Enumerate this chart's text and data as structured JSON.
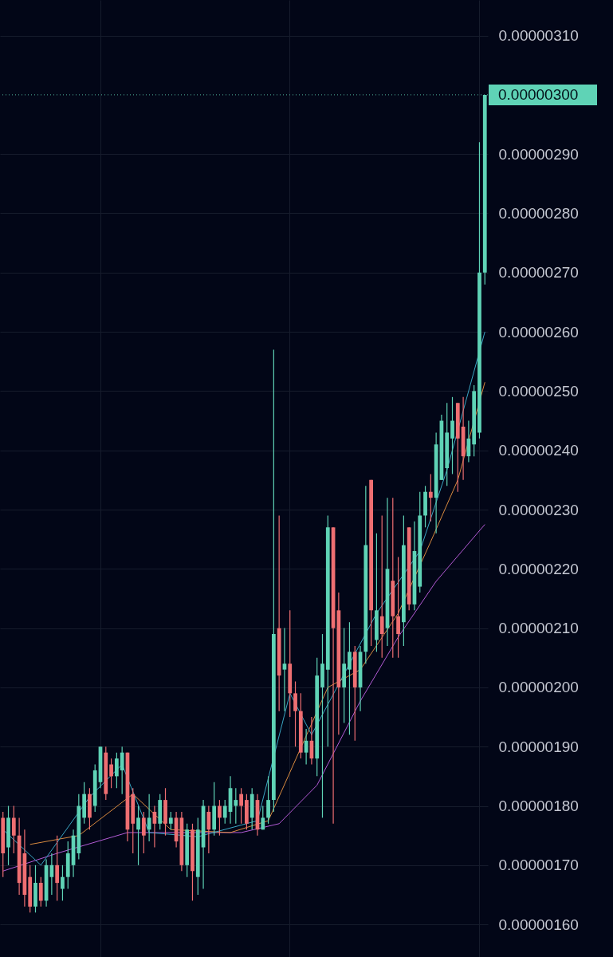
{
  "chart_data": {
    "type": "candlestick",
    "categories": [
      null,
      null,
      null,
      null,
      null,
      null,
      null,
      null,
      null,
      null,
      null,
      null,
      null,
      null,
      null,
      null,
      null,
      null,
      null,
      null,
      null,
      null,
      null,
      null,
      null,
      null,
      null,
      null,
      null,
      null,
      null,
      null,
      null,
      null,
      null,
      null,
      null,
      null,
      null,
      null,
      null,
      null,
      null,
      null,
      null,
      null,
      null,
      null,
      null,
      null,
      null,
      null,
      null,
      null,
      null,
      null,
      null,
      null,
      null,
      null,
      null,
      null,
      null,
      null,
      null,
      null,
      null,
      null,
      null,
      null,
      null,
      null,
      null,
      null,
      null,
      null,
      null,
      null,
      null,
      null,
      null,
      null,
      null,
      null,
      null,
      null,
      null,
      null,
      null,
      null
    ],
    "ohlc": [
      [
        1.78e-06,
        1.79e-06,
        1.68e-06,
        1.72e-06
      ],
      [
        1.73e-06,
        1.8e-06,
        1.7e-06,
        1.78e-06
      ],
      [
        1.78e-06,
        1.8e-06,
        1.72e-06,
        1.75e-06
      ],
      [
        1.75e-06,
        1.78e-06,
        1.65e-06,
        1.67e-06
      ],
      [
        1.72e-06,
        1.76e-06,
        1.63e-06,
        1.65e-06
      ],
      [
        1.68e-06,
        1.7e-06,
        1.62e-06,
        1.63e-06
      ],
      [
        1.63e-06,
        1.7e-06,
        1.62e-06,
        1.67e-06
      ],
      [
        1.67e-06,
        1.68e-06,
        1.63e-06,
        1.64e-06
      ],
      [
        1.64e-06,
        1.71e-06,
        1.63e-06,
        1.7e-06
      ],
      [
        1.68e-06,
        1.72e-06,
        1.65e-06,
        1.7e-06
      ],
      [
        1.7e-06,
        1.75e-06,
        1.64e-06,
        1.67e-06
      ],
      [
        1.66e-06,
        1.7e-06,
        1.64e-06,
        1.68e-06
      ],
      [
        1.68e-06,
        1.74e-06,
        1.66e-06,
        1.72e-06
      ],
      [
        1.7e-06,
        1.76e-06,
        1.68e-06,
        1.75e-06
      ],
      [
        1.72e-06,
        1.82e-06,
        1.71e-06,
        1.8e-06
      ],
      [
        1.78e-06,
        1.84e-06,
        1.77e-06,
        1.82e-06
      ],
      [
        1.82e-06,
        1.83e-06,
        1.76e-06,
        1.78e-06
      ],
      [
        1.8e-06,
        1.87e-06,
        1.79e-06,
        1.86e-06
      ],
      [
        1.84e-06,
        1.9e-06,
        1.83e-06,
        1.9e-06
      ],
      [
        1.89e-06,
        1.9e-06,
        1.81e-06,
        1.82e-06
      ],
      [
        1.87e-06,
        1.88e-06,
        1.83e-06,
        1.85e-06
      ],
      [
        1.85e-06,
        1.89e-06,
        1.83e-06,
        1.88e-06
      ],
      [
        1.86e-06,
        1.9e-06,
        1.82e-06,
        1.89e-06
      ],
      [
        1.89e-06,
        1.89e-06,
        1.74e-06,
        1.76e-06
      ],
      [
        1.82e-06,
        1.83e-06,
        1.72e-06,
        1.77e-06
      ],
      [
        1.76e-06,
        1.8e-06,
        1.7e-06,
        1.78e-06
      ],
      [
        1.78e-06,
        1.79e-06,
        1.72e-06,
        1.75e-06
      ],
      [
        1.76e-06,
        1.82e-06,
        1.74e-06,
        1.78e-06
      ],
      [
        1.79e-06,
        1.8e-06,
        1.73e-06,
        1.77e-06
      ],
      [
        1.77e-06,
        1.82e-06,
        1.76e-06,
        1.81e-06
      ],
      [
        1.81e-06,
        1.83e-06,
        1.75e-06,
        1.77e-06
      ],
      [
        1.77e-06,
        1.79e-06,
        1.76e-06,
        1.78e-06
      ],
      [
        1.78e-06,
        1.79e-06,
        1.73e-06,
        1.74e-06
      ],
      [
        1.78e-06,
        1.79e-06,
        1.69e-06,
        1.7e-06
      ],
      [
        1.7e-06,
        1.77e-06,
        1.68e-06,
        1.76e-06
      ],
      [
        1.76e-06,
        1.77e-06,
        1.64e-06,
        1.69e-06
      ],
      [
        1.68e-06,
        1.78e-06,
        1.65e-06,
        1.76e-06
      ],
      [
        1.73e-06,
        1.81e-06,
        1.66e-06,
        1.8e-06
      ],
      [
        1.79e-06,
        1.8e-06,
        1.72e-06,
        1.76e-06
      ],
      [
        1.76e-06,
        1.84e-06,
        1.75e-06,
        1.8e-06
      ],
      [
        1.8e-06,
        1.81e-06,
        1.75e-06,
        1.78e-06
      ],
      [
        1.78e-06,
        1.81e-06,
        1.77e-06,
        1.8e-06
      ],
      [
        1.79e-06,
        1.85e-06,
        1.77e-06,
        1.83e-06
      ],
      [
        1.8e-06,
        1.83e-06,
        1.77e-06,
        1.81e-06
      ],
      [
        1.82e-06,
        1.83e-06,
        1.77e-06,
        1.8e-06
      ],
      [
        1.81e-06,
        1.82e-06,
        1.76e-06,
        1.77e-06
      ],
      [
        1.78e-06,
        1.83e-06,
        1.76e-06,
        1.82e-06
      ],
      [
        1.81e-06,
        1.82e-06,
        1.75e-06,
        1.76e-06
      ],
      [
        1.76e-06,
        1.8e-06,
        1.76e-06,
        1.78e-06
      ],
      [
        1.78e-06,
        1.85e-06,
        1.77e-06,
        1.81e-06
      ],
      [
        1.81e-06,
        2.57e-06,
        1.79e-06,
        2.09e-06
      ],
      [
        2.1e-06,
        2.29e-06,
        1.96e-06,
        2.02e-06
      ],
      [
        2.03e-06,
        2.1e-06,
        1.96e-06,
        2.04e-06
      ],
      [
        2.04e-06,
        2.13e-06,
        1.95e-06,
        1.99e-06
      ],
      [
        1.99e-06,
        2.01e-06,
        1.9e-06,
        1.96e-06
      ],
      [
        1.96e-06,
        1.99e-06,
        1.88e-06,
        1.89e-06
      ],
      [
        1.89e-06,
        1.93e-06,
        1.87e-06,
        1.91e-06
      ],
      [
        1.91e-06,
        1.95e-06,
        1.87e-06,
        1.88e-06
      ],
      [
        1.88e-06,
        2.05e-06,
        1.85e-06,
        2.02e-06
      ],
      [
        2e-06,
        2.09e-06,
        1.78e-06,
        2.04e-06
      ],
      [
        2.03e-06,
        2.29e-06,
        1.9e-06,
        2.27e-06
      ],
      [
        2.27e-06,
        2.27e-06,
        1.77e-06,
        2.1e-06
      ],
      [
        2.13e-06,
        2.16e-06,
        1.92e-06,
        2e-06
      ],
      [
        2e-06,
        2.1e-06,
        1.94e-06,
        2.04e-06
      ],
      [
        2.03e-06,
        2.11e-06,
        1.92e-06,
        2.06e-06
      ],
      [
        2.06e-06,
        2.07e-06,
        1.91e-06,
        2e-06
      ],
      [
        2e-06,
        2.07e-06,
        1.96e-06,
        2.06e-06
      ],
      [
        2.06e-06,
        2.34e-06,
        2.04e-06,
        2.24e-06
      ],
      [
        2.35e-06,
        2.35e-06,
        2.07e-06,
        2.13e-06
      ],
      [
        2.08e-06,
        2.26e-06,
        2.06e-06,
        2.13e-06
      ],
      [
        2.12e-06,
        2.29e-06,
        2.05e-06,
        2.09e-06
      ],
      [
        2.1e-06,
        2.32e-06,
        2.07e-06,
        2.2e-06
      ],
      [
        2.18e-06,
        2.32e-06,
        2.05e-06,
        2.12e-06
      ],
      [
        2.12e-06,
        2.22e-06,
        2.05e-06,
        2.09e-06
      ],
      [
        2.11e-06,
        2.29e-06,
        2.07e-06,
        2.24e-06
      ],
      [
        2.27e-06,
        2.27e-06,
        2.13e-06,
        2.14e-06
      ],
      [
        2.14e-06,
        2.28e-06,
        2.13e-06,
        2.23e-06
      ],
      [
        2.17e-06,
        2.33e-06,
        2.16e-06,
        2.29e-06
      ],
      [
        2.29e-06,
        2.34e-06,
        2.27e-06,
        2.33e-06
      ],
      [
        2.33e-06,
        2.36e-06,
        2.28e-06,
        2.32e-06
      ],
      [
        2.32e-06,
        2.43e-06,
        2.26e-06,
        2.41e-06
      ],
      [
        2.35e-06,
        2.46e-06,
        2.35e-06,
        2.45e-06
      ],
      [
        2.37e-06,
        2.48e-06,
        2.34e-06,
        2.43e-06
      ],
      [
        2.42e-06,
        2.49e-06,
        2.36e-06,
        2.45e-06
      ],
      [
        2.48e-06,
        2.48e-06,
        2.33e-06,
        2.42e-06
      ],
      [
        2.44e-06,
        2.49e-06,
        2.35e-06,
        2.39e-06
      ],
      [
        2.39e-06,
        2.45e-06,
        2.38e-06,
        2.42e-06
      ],
      [
        2.41e-06,
        2.51e-06,
        2.39e-06,
        2.5e-06
      ],
      [
        2.43e-06,
        2.92e-06,
        2.42e-06,
        2.7e-06
      ],
      [
        2.7e-06,
        3e-06,
        2.68e-06,
        3e-06
      ]
    ],
    "series": [
      {
        "type": "line",
        "color": "#b25bd6",
        "values": [
          1.69e-06,
          null,
          null,
          null,
          null,
          null,
          null,
          null,
          null,
          null,
          1.72e-06,
          null,
          null,
          null,
          null,
          null,
          null,
          null,
          null,
          null,
          null,
          null,
          null,
          1.755e-06,
          null,
          null,
          null,
          null,
          null,
          null,
          null,
          null,
          null,
          null,
          null,
          null,
          null,
          null,
          null,
          null,
          null,
          null,
          null,
          null,
          1.755e-06,
          null,
          null,
          null,
          null,
          null,
          null,
          1.77e-06,
          null,
          null,
          null,
          null,
          null,
          null,
          1.835e-06,
          null,
          null,
          null,
          null,
          null,
          null,
          null,
          1.977e-06,
          null,
          null,
          null,
          null,
          null,
          null,
          2.085e-06,
          null,
          null,
          null,
          null,
          null,
          null,
          2.179e-06,
          null,
          null,
          null,
          null,
          null,
          null,
          null,
          null,
          2.275e-06
        ]
      },
      {
        "type": "line",
        "color": "#d98b3f",
        "values": [
          null,
          null,
          null,
          null,
          null,
          1.735e-06,
          null,
          null,
          null,
          null,
          null,
          null,
          null,
          null,
          1.75e-06,
          null,
          null,
          null,
          null,
          null,
          null,
          null,
          null,
          null,
          1.82e-06,
          null,
          null,
          null,
          null,
          null,
          null,
          1.76e-06,
          null,
          null,
          null,
          null,
          null,
          null,
          null,
          null,
          null,
          null,
          1.755e-06,
          null,
          null,
          null,
          null,
          null,
          null,
          1.775e-06,
          null,
          null,
          null,
          null,
          null,
          null,
          null,
          null,
          null,
          null,
          2e-06,
          null,
          null,
          null,
          null,
          null,
          2.03e-06,
          null,
          null,
          null,
          null,
          null,
          null,
          2.125e-06,
          null,
          null,
          null,
          null,
          null,
          2.246e-06,
          null,
          null,
          null,
          null,
          2.35e-06,
          null,
          null,
          null,
          null,
          2.515e-06
        ]
      },
      {
        "type": "line",
        "color": "#3aa6c4",
        "values": [
          1.76e-06,
          null,
          null,
          null,
          null,
          null,
          null,
          1.7e-06,
          null,
          null,
          null,
          null,
          null,
          null,
          null,
          null,
          1.815e-06,
          null,
          null,
          null,
          null,
          null,
          1.87e-06,
          null,
          null,
          null,
          null,
          1.755e-06,
          null,
          null,
          null,
          null,
          null,
          null,
          null,
          null,
          1.748e-06,
          null,
          null,
          null,
          null,
          null,
          null,
          null,
          null,
          null,
          null,
          1.775e-06,
          null,
          null,
          null,
          null,
          null,
          1.99e-06,
          null,
          null,
          null,
          1.92e-06,
          null,
          null,
          null,
          null,
          null,
          null,
          null,
          null,
          null,
          null,
          null,
          2.125e-06,
          null,
          null,
          null,
          null,
          null,
          null,
          null,
          2.23e-06,
          null,
          null,
          null,
          null,
          2.367e-06,
          null,
          null,
          null,
          null,
          null,
          null,
          2.6e-06
        ]
      }
    ],
    "ylim": [
      1.545e-06,
      3.16e-06
    ],
    "yticks": [
      {
        "value": 1.6e-06,
        "label": "0.00000160"
      },
      {
        "value": 1.7e-06,
        "label": "0.00000170"
      },
      {
        "value": 1.8e-06,
        "label": "0.00000180"
      },
      {
        "value": 1.9e-06,
        "label": "0.00000190"
      },
      {
        "value": 2e-06,
        "label": "0.00000200"
      },
      {
        "value": 2.1e-06,
        "label": "0.00000210"
      },
      {
        "value": 2.2e-06,
        "label": "0.00000220"
      },
      {
        "value": 2.3e-06,
        "label": "0.00000230"
      },
      {
        "value": 2.4e-06,
        "label": "0.00000240"
      },
      {
        "value": 2.5e-06,
        "label": "0.00000250"
      },
      {
        "value": 2.6e-06,
        "label": "0.00000260"
      },
      {
        "value": 2.7e-06,
        "label": "0.00000270"
      },
      {
        "value": 2.8e-06,
        "label": "0.00000280"
      },
      {
        "value": 2.9e-06,
        "label": "0.00000290"
      },
      {
        "value": 3.1e-06,
        "label": "0.00000310"
      }
    ],
    "grid": true,
    "tick_labels": "y",
    "ref_lines": [
      {
        "axis": "y",
        "value": 3e-06,
        "label": "0.00000300",
        "color": "#5fd3b6",
        "line_style": "dotted"
      }
    ]
  }
}
